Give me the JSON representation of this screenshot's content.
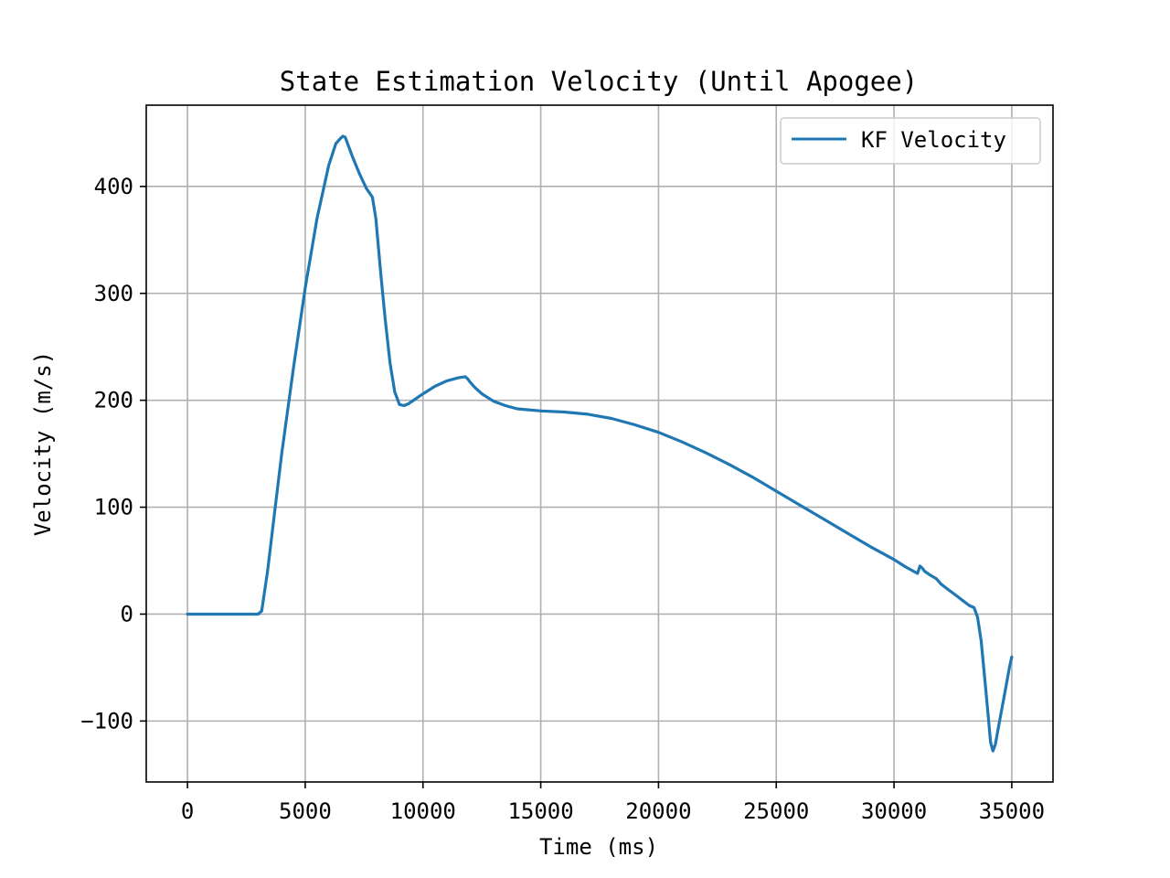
{
  "chart_data": {
    "type": "line",
    "title": "State Estimation Velocity (Until Apogee)",
    "xlabel": "Time (ms)",
    "ylabel": "Velocity (m/s)",
    "xlim": [
      -1750,
      36750
    ],
    "ylim": [
      -157,
      476
    ],
    "x_ticks": [
      0,
      5000,
      10000,
      15000,
      20000,
      25000,
      30000,
      35000
    ],
    "x_tick_labels": [
      "0",
      "5000",
      "10000",
      "15000",
      "20000",
      "25000",
      "30000",
      "35000"
    ],
    "y_ticks": [
      -100,
      0,
      100,
      200,
      300,
      400
    ],
    "y_tick_labels": [
      "−100",
      "0",
      "100",
      "200",
      "300",
      "400"
    ],
    "grid": true,
    "legend_position": "top-right",
    "colors": {
      "series": "#1f77b4",
      "grid": "#b0b0b0",
      "axes": "#000000",
      "legend_border": "#cccccc"
    },
    "series": [
      {
        "name": "KF Velocity",
        "x": [
          0,
          1000,
          2000,
          3000,
          3150,
          3400,
          3700,
          4000,
          4500,
          5000,
          5500,
          6000,
          6300,
          6500,
          6600,
          6700,
          6800,
          7000,
          7300,
          7600,
          7850,
          8000,
          8200,
          8400,
          8600,
          8800,
          9000,
          9200,
          9400,
          9600,
          9800,
          10000,
          10500,
          11000,
          11500,
          11800,
          11900,
          12000,
          12200,
          12500,
          13000,
          13500,
          14000,
          15000,
          16000,
          17000,
          18000,
          19000,
          20000,
          21000,
          22000,
          23000,
          24000,
          25000,
          26000,
          27000,
          28000,
          29000,
          30000,
          30500,
          31000,
          31100,
          31200,
          31300,
          31500,
          31800,
          32000,
          32300,
          32600,
          32900,
          33200,
          33400,
          33550,
          33700,
          33850,
          34000,
          34100,
          34200,
          34300,
          34400,
          34500,
          34600,
          34700,
          34800,
          34900,
          35000
        ],
        "y": [
          0,
          0,
          0,
          0,
          3,
          40,
          95,
          150,
          230,
          305,
          370,
          420,
          440,
          445,
          447,
          446,
          440,
          428,
          412,
          398,
          390,
          370,
          320,
          275,
          235,
          208,
          196,
          195,
          197,
          200,
          203,
          206,
          213,
          218,
          221,
          222,
          220,
          217,
          212,
          206,
          199,
          195,
          192,
          190,
          189,
          187,
          183,
          177,
          170,
          161,
          151,
          140,
          128,
          115,
          102,
          89,
          76,
          63,
          51,
          44,
          38,
          45,
          43,
          40,
          37,
          33,
          28,
          23,
          18,
          13,
          8,
          6,
          -3,
          -25,
          -60,
          -95,
          -120,
          -128,
          -122,
          -110,
          -98,
          -86,
          -74,
          -62,
          -50,
          -40
        ]
      }
    ]
  }
}
